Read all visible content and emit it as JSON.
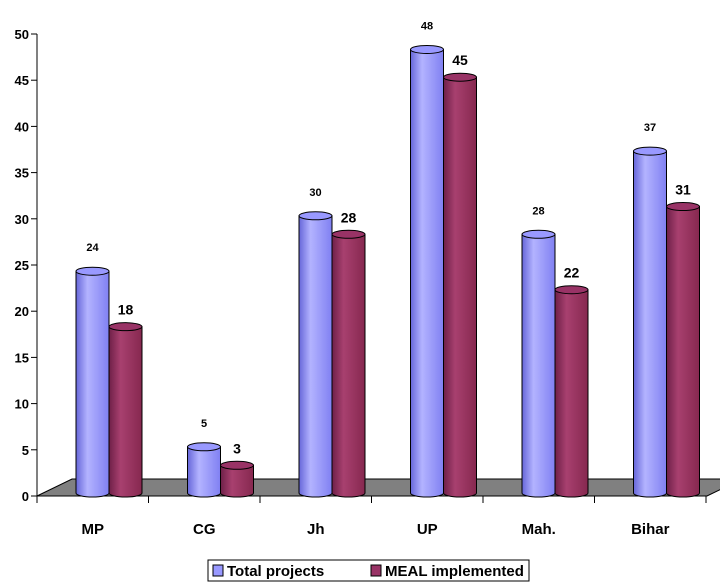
{
  "chart_data": {
    "type": "bar",
    "categories": [
      "MP",
      "CG",
      "Jh",
      "UP",
      "Mah.",
      "Bihar"
    ],
    "series": [
      {
        "name": "Total projects",
        "values": [
          24,
          5,
          30,
          48,
          28,
          37
        ]
      },
      {
        "name": "MEAL implemented",
        "values": [
          18,
          3,
          28,
          45,
          22,
          31
        ]
      }
    ],
    "data_labels": {
      "series_0": [
        "24",
        "5",
        "30",
        "48",
        "28",
        "37"
      ],
      "series_1": [
        "18",
        "3",
        "28",
        "45",
        "22",
        "31"
      ]
    },
    "ylim": [
      0,
      50
    ],
    "yticks": [
      0,
      5,
      10,
      15,
      20,
      25,
      30,
      35,
      40,
      45,
      50
    ],
    "xlabel": "",
    "ylabel": "",
    "title": "",
    "grid": false,
    "style": "3d-cylinder",
    "legend_position": "bottom",
    "colors": {
      "series_0": "#9999ff",
      "series_1": "#993366",
      "floor": "#808080",
      "axis": "#000000"
    }
  }
}
